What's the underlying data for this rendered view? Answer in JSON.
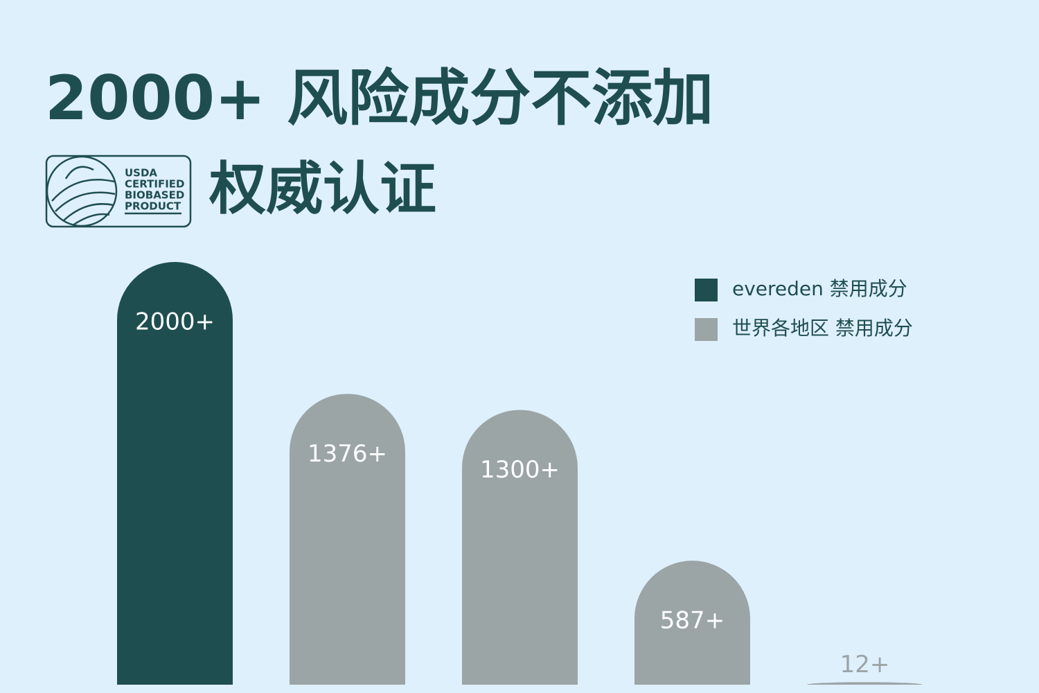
{
  "logo": {
    "lines": [
      "USDA",
      "CERTIFIED",
      "BIOBASED",
      "PRODUCT"
    ]
  },
  "chart_data": {
    "type": "bar",
    "title": "2000+ 风险成分不添加",
    "subtitle": "权威认证",
    "categories": [
      null,
      null,
      null,
      null,
      null
    ],
    "series": [
      {
        "name": "evereden 禁用成分",
        "color": "#1f4e50",
        "values": [
          2000,
          null,
          null,
          null,
          null
        ],
        "value_labels": [
          "2000+",
          null,
          null,
          null,
          null
        ]
      },
      {
        "name": "世界各地区 禁用成分",
        "color": "#9ba5a6",
        "values": [
          null,
          1376,
          1300,
          587,
          12
        ],
        "value_labels": [
          null,
          "1376+",
          "1300+",
          "587+",
          "12+"
        ]
      }
    ],
    "ylim": [
      0,
      2000
    ],
    "legend": "upper right"
  }
}
